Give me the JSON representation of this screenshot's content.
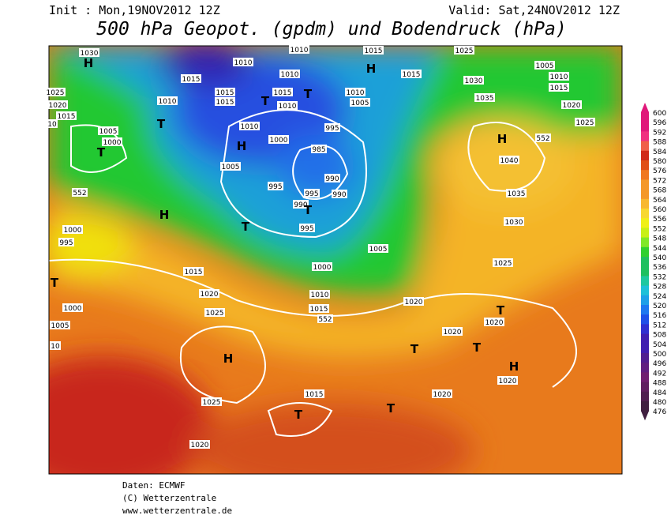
{
  "header": {
    "init": "Init : Mon,19NOV2012 12Z",
    "valid": "Valid: Sat,24NOV2012 12Z",
    "title": "500 hPa Geopot. (gpdm) und Bodendruck (hPa)"
  },
  "colorbar": {
    "ticks": [
      600,
      596,
      592,
      588,
      584,
      580,
      576,
      572,
      568,
      564,
      560,
      556,
      552,
      548,
      544,
      540,
      536,
      532,
      528,
      524,
      520,
      516,
      512,
      508,
      504,
      500,
      496,
      492,
      488,
      484,
      480,
      476
    ]
  },
  "isobar_labels": [
    "1030",
    "1010",
    "1010",
    "1015",
    "1025",
    "1005",
    "1010",
    "1015",
    "1020",
    "1025",
    "1015",
    "1015",
    "1015",
    "1010",
    "1015",
    "1010",
    "1010",
    "1005",
    "1015",
    "1030",
    "1035",
    "1025",
    "1020",
    "1015",
    "1010",
    "10",
    "1005",
    "1000",
    "1010",
    "1000",
    "995",
    "985",
    "990",
    "990",
    "995",
    "995",
    "990",
    "995",
    "1005",
    "1005",
    "1000",
    "1010",
    "1015",
    "552",
    "1020",
    "1020",
    "1020",
    "1025",
    "1030",
    "1035",
    "1040",
    "552",
    "552",
    "1000",
    "995",
    "1000",
    "1005",
    "10",
    "1015",
    "1020",
    "1025",
    "1025",
    "1020",
    "1015",
    "1020",
    "1020"
  ],
  "pressure_centers": [
    "H",
    "H",
    "T",
    "T",
    "T",
    "T",
    "H",
    "T",
    "T",
    "H",
    "H",
    "T",
    "H",
    "T",
    "T",
    "T",
    "T",
    "T",
    "H"
  ],
  "footer": [
    "Daten: ECMWF",
    "(C) Wetterzentrale",
    "www.wetterzentrale.de"
  ]
}
